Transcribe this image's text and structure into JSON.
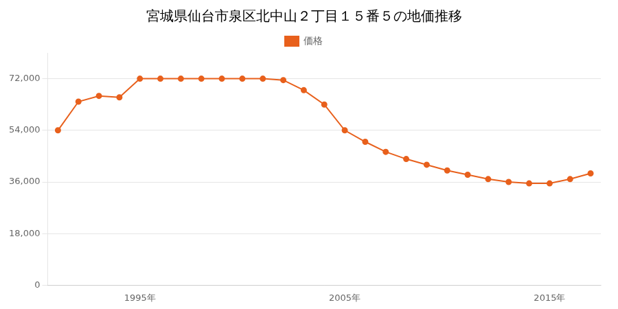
{
  "chart_data": {
    "type": "line",
    "title": "宮城県仙台市泉区北中山２丁目１５番５の地価推移",
    "x": [
      1991,
      1992,
      1993,
      1994,
      1995,
      1996,
      1997,
      1998,
      1999,
      2000,
      2001,
      2002,
      2003,
      2004,
      2005,
      2006,
      2007,
      2008,
      2009,
      2010,
      2011,
      2012,
      2013,
      2014,
      2015,
      2016,
      2017
    ],
    "series": [
      {
        "name": "価格",
        "color": "#E8601C",
        "marker": "circle",
        "values": [
          54000,
          64000,
          66000,
          65500,
          72000,
          72000,
          72000,
          72000,
          72000,
          72000,
          72000,
          71500,
          68000,
          63000,
          54000,
          50000,
          46500,
          44000,
          42000,
          40000,
          38500,
          37000,
          36000,
          35500,
          35500,
          37000,
          39000
        ]
      }
    ],
    "xlim": [
      1990.5,
      2017.5
    ],
    "xticks": [
      {
        "value": 1995,
        "label": "1995年"
      },
      {
        "value": 2005,
        "label": "2005年"
      },
      {
        "value": 2015,
        "label": "2015年"
      }
    ],
    "ylim": [
      0,
      81000
    ],
    "yticks": [
      0,
      {
        "value": 18000,
        "label": "18,000"
      },
      {
        "value": 36000,
        "label": "36,000"
      },
      {
        "value": 54000,
        "label": "54,000"
      },
      {
        "value": 72000,
        "label": "72,000"
      }
    ],
    "grid": "y",
    "legend": "top"
  }
}
